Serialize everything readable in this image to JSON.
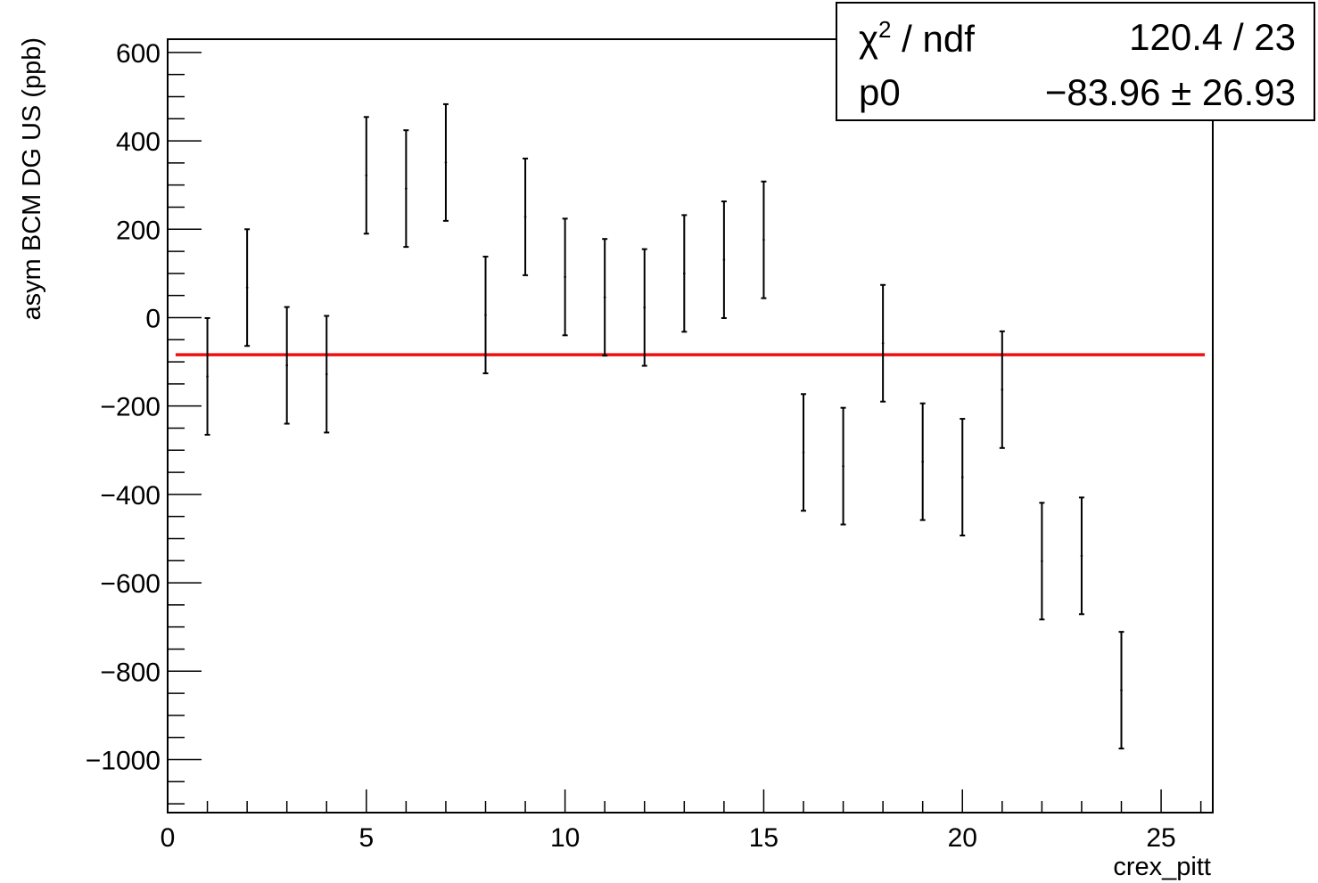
{
  "chart_data": {
    "type": "scatter",
    "title": "",
    "xlabel": "crex_pitt",
    "ylabel": "asym BCM DG US (ppb)",
    "xlim": [
      0,
      26.3
    ],
    "ylim": [
      -1120,
      630
    ],
    "x_ticks": [
      "0",
      "5",
      "10",
      "15",
      "20",
      "25"
    ],
    "y_ticks": [
      "600",
      "400",
      "200",
      "0",
      "−200",
      "−400",
      "−600",
      "−800",
      "−1000"
    ],
    "grid": false,
    "series": [
      {
        "x": [
          1,
          2,
          3,
          4,
          5,
          6,
          7,
          8,
          9,
          10,
          11,
          12,
          13,
          14,
          15,
          16,
          17,
          18,
          19,
          20,
          21,
          22,
          23,
          24
        ],
        "y": [
          -133,
          68,
          -108,
          -128,
          322,
          292,
          351,
          6,
          228,
          92,
          46,
          23,
          100,
          131,
          176,
          -305,
          -336,
          -58,
          -326,
          -361,
          -163,
          -551,
          -539,
          -843
        ],
        "err": [
          132,
          132,
          132,
          132,
          132,
          132,
          132,
          132,
          132,
          132,
          132,
          132,
          132,
          132,
          132,
          132,
          132,
          132,
          132,
          132,
          132,
          132,
          132,
          132
        ]
      }
    ],
    "fit": {
      "x_range": [
        0.2,
        26.1
      ],
      "value": -83.96,
      "color": "#ee1111"
    },
    "stats": {
      "chi_label": "χ",
      "chi_sup": "2",
      "chi_rest": " / ndf",
      "chi_value": "120.4 / 23",
      "p0_label": "p0",
      "p0_value": "−83.96 ± 26.93"
    }
  }
}
